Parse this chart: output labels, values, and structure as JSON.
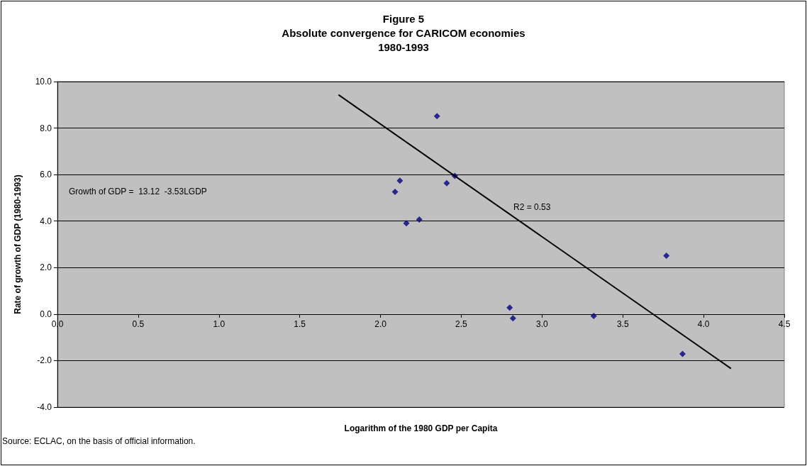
{
  "chart_data": {
    "type": "scatter",
    "title": "Figure 5\nAbsolute convergence for CARICOM economies\n1980-1993",
    "xlabel": "Logarithm of the 1980 GDP per Capita",
    "ylabel": "Rate of growth of GDP (1980-1993)",
    "series": [
      {
        "marker": "diamond",
        "color": "#000080",
        "x": [
          2.35,
          2.46,
          2.41,
          2.12,
          2.09,
          2.24,
          2.16,
          2.8,
          2.82,
          3.32,
          3.77,
          3.87
        ],
        "values": [
          8.51,
          5.94,
          5.63,
          5.74,
          5.26,
          4.07,
          3.91,
          0.28,
          -0.18,
          -0.08,
          2.51,
          -1.71
        ]
      },
      {
        "type": "line",
        "marker": "none",
        "color": "#000000",
        "x": [
          1.74,
          4.17
        ],
        "values": [
          9.43,
          -2.34
        ]
      }
    ],
    "xlim": [
      0,
      4.5
    ],
    "xticks": [
      {
        "value": 0,
        "label": "0.0"
      },
      {
        "value": 0.5,
        "label": "0.5"
      },
      {
        "value": 1,
        "label": "1.0"
      },
      {
        "value": 1.5,
        "label": "1.5"
      },
      {
        "value": 2,
        "label": "2.0"
      },
      {
        "value": 2.5,
        "label": "2.5"
      },
      {
        "value": 3,
        "label": "3.0"
      },
      {
        "value": 3.5,
        "label": "3.5"
      },
      {
        "value": 4,
        "label": "4.0"
      },
      {
        "value": 4.5,
        "label": "4.5"
      }
    ],
    "ylim": [
      -4,
      10
    ],
    "yticks": [
      {
        "value": -4,
        "label": "-4.0"
      },
      {
        "value": -2,
        "label": "-2.0"
      },
      {
        "value": 0,
        "label": "0.0"
      },
      {
        "value": 2,
        "label": "2.0"
      },
      {
        "value": 4,
        "label": "4.0"
      },
      {
        "value": 6,
        "label": "6.0"
      },
      {
        "value": 8,
        "label": "8.0"
      },
      {
        "value": 10,
        "label": "10.0"
      }
    ],
    "grid": "y",
    "annotations": [
      "Growth of GDP =  13.12  -3.53LGDP",
      "R2 = 0.53",
      "Source: ECLAC, on the basis of official information."
    ]
  }
}
